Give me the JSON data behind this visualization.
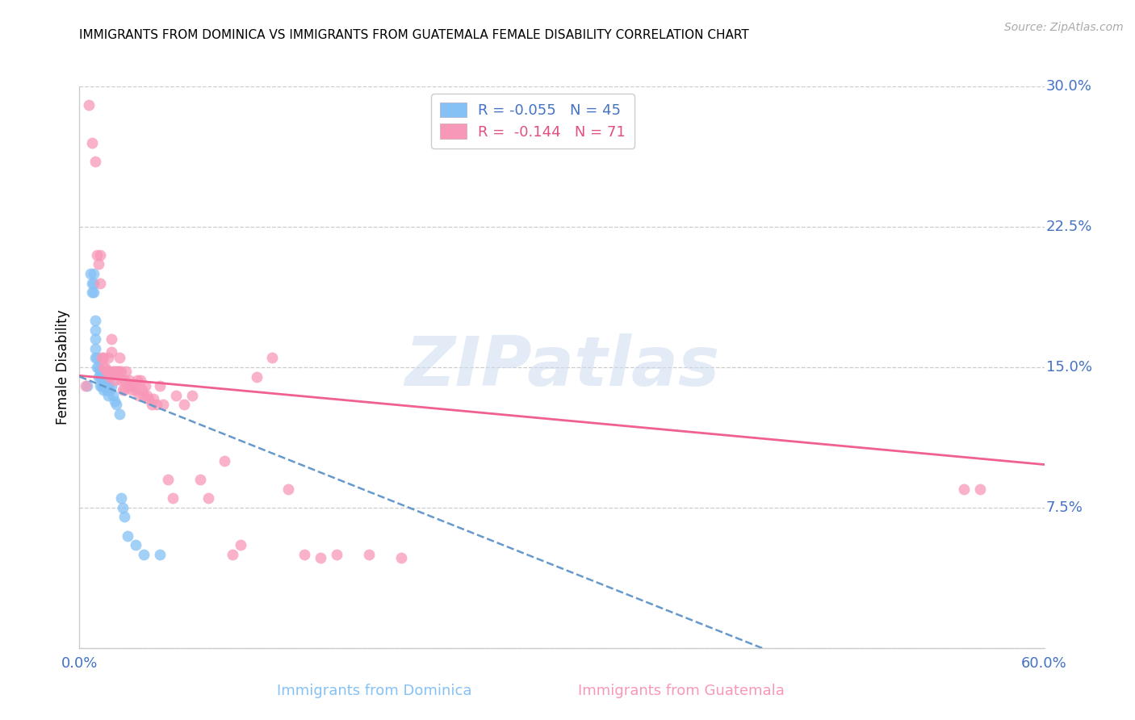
{
  "title": "IMMIGRANTS FROM DOMINICA VS IMMIGRANTS FROM GUATEMALA FEMALE DISABILITY CORRELATION CHART",
  "source": "Source: ZipAtlas.com",
  "ylabel": "Female Disability",
  "xlabel_dominica": "Immigrants from Dominica",
  "xlabel_guatemala": "Immigrants from Guatemala",
  "xlim": [
    0.0,
    0.6
  ],
  "ylim": [
    0.0,
    0.3
  ],
  "yticks": [
    0.0,
    0.075,
    0.15,
    0.225,
    0.3
  ],
  "ytick_labels": [
    "",
    "7.5%",
    "15.0%",
    "22.5%",
    "30.0%"
  ],
  "dominica_R": -0.055,
  "dominica_N": 45,
  "guatemala_R": -0.144,
  "guatemala_N": 71,
  "color_dominica": "#85c1f5",
  "color_guatemala": "#f898b8",
  "color_dominica_line": "#6699cc",
  "color_guatemala_line": "#f06090",
  "legend_dominica_label": "R = -0.055   N = 45",
  "legend_guatemala_label": "R =  -0.144   N = 71",
  "watermark": "ZIPatlas",
  "dominica_x": [
    0.005,
    0.007,
    0.008,
    0.008,
    0.009,
    0.009,
    0.009,
    0.01,
    0.01,
    0.01,
    0.01,
    0.01,
    0.011,
    0.011,
    0.012,
    0.012,
    0.013,
    0.013,
    0.013,
    0.014,
    0.014,
    0.014,
    0.015,
    0.015,
    0.015,
    0.016,
    0.016,
    0.017,
    0.017,
    0.018,
    0.018,
    0.018,
    0.019,
    0.02,
    0.021,
    0.022,
    0.023,
    0.025,
    0.026,
    0.027,
    0.028,
    0.03,
    0.035,
    0.04,
    0.05
  ],
  "dominica_y": [
    0.14,
    0.2,
    0.195,
    0.19,
    0.2,
    0.195,
    0.19,
    0.175,
    0.17,
    0.165,
    0.16,
    0.155,
    0.155,
    0.15,
    0.15,
    0.145,
    0.148,
    0.145,
    0.14,
    0.148,
    0.145,
    0.14,
    0.145,
    0.14,
    0.138,
    0.145,
    0.14,
    0.142,
    0.138,
    0.14,
    0.138,
    0.135,
    0.138,
    0.14,
    0.135,
    0.132,
    0.13,
    0.125,
    0.08,
    0.075,
    0.07,
    0.06,
    0.055,
    0.05,
    0.05
  ],
  "guatemala_x": [
    0.004,
    0.006,
    0.008,
    0.01,
    0.011,
    0.012,
    0.013,
    0.013,
    0.014,
    0.015,
    0.015,
    0.016,
    0.017,
    0.018,
    0.018,
    0.019,
    0.019,
    0.02,
    0.02,
    0.021,
    0.022,
    0.022,
    0.023,
    0.024,
    0.025,
    0.025,
    0.026,
    0.026,
    0.027,
    0.028,
    0.028,
    0.029,
    0.03,
    0.031,
    0.032,
    0.033,
    0.034,
    0.035,
    0.036,
    0.037,
    0.038,
    0.039,
    0.04,
    0.041,
    0.042,
    0.043,
    0.045,
    0.046,
    0.048,
    0.05,
    0.052,
    0.055,
    0.058,
    0.06,
    0.065,
    0.07,
    0.075,
    0.08,
    0.09,
    0.095,
    0.1,
    0.11,
    0.12,
    0.13,
    0.14,
    0.15,
    0.16,
    0.18,
    0.2,
    0.55,
    0.56
  ],
  "guatemala_y": [
    0.14,
    0.29,
    0.27,
    0.26,
    0.21,
    0.205,
    0.195,
    0.21,
    0.155,
    0.155,
    0.15,
    0.15,
    0.148,
    0.155,
    0.148,
    0.148,
    0.145,
    0.165,
    0.158,
    0.148,
    0.148,
    0.143,
    0.148,
    0.148,
    0.155,
    0.148,
    0.148,
    0.143,
    0.138,
    0.143,
    0.138,
    0.148,
    0.14,
    0.143,
    0.14,
    0.138,
    0.14,
    0.138,
    0.143,
    0.135,
    0.143,
    0.138,
    0.135,
    0.14,
    0.135,
    0.133,
    0.13,
    0.133,
    0.13,
    0.14,
    0.13,
    0.09,
    0.08,
    0.135,
    0.13,
    0.135,
    0.09,
    0.08,
    0.1,
    0.05,
    0.055,
    0.145,
    0.155,
    0.085,
    0.05,
    0.048,
    0.05,
    0.05,
    0.048,
    0.085,
    0.085
  ]
}
